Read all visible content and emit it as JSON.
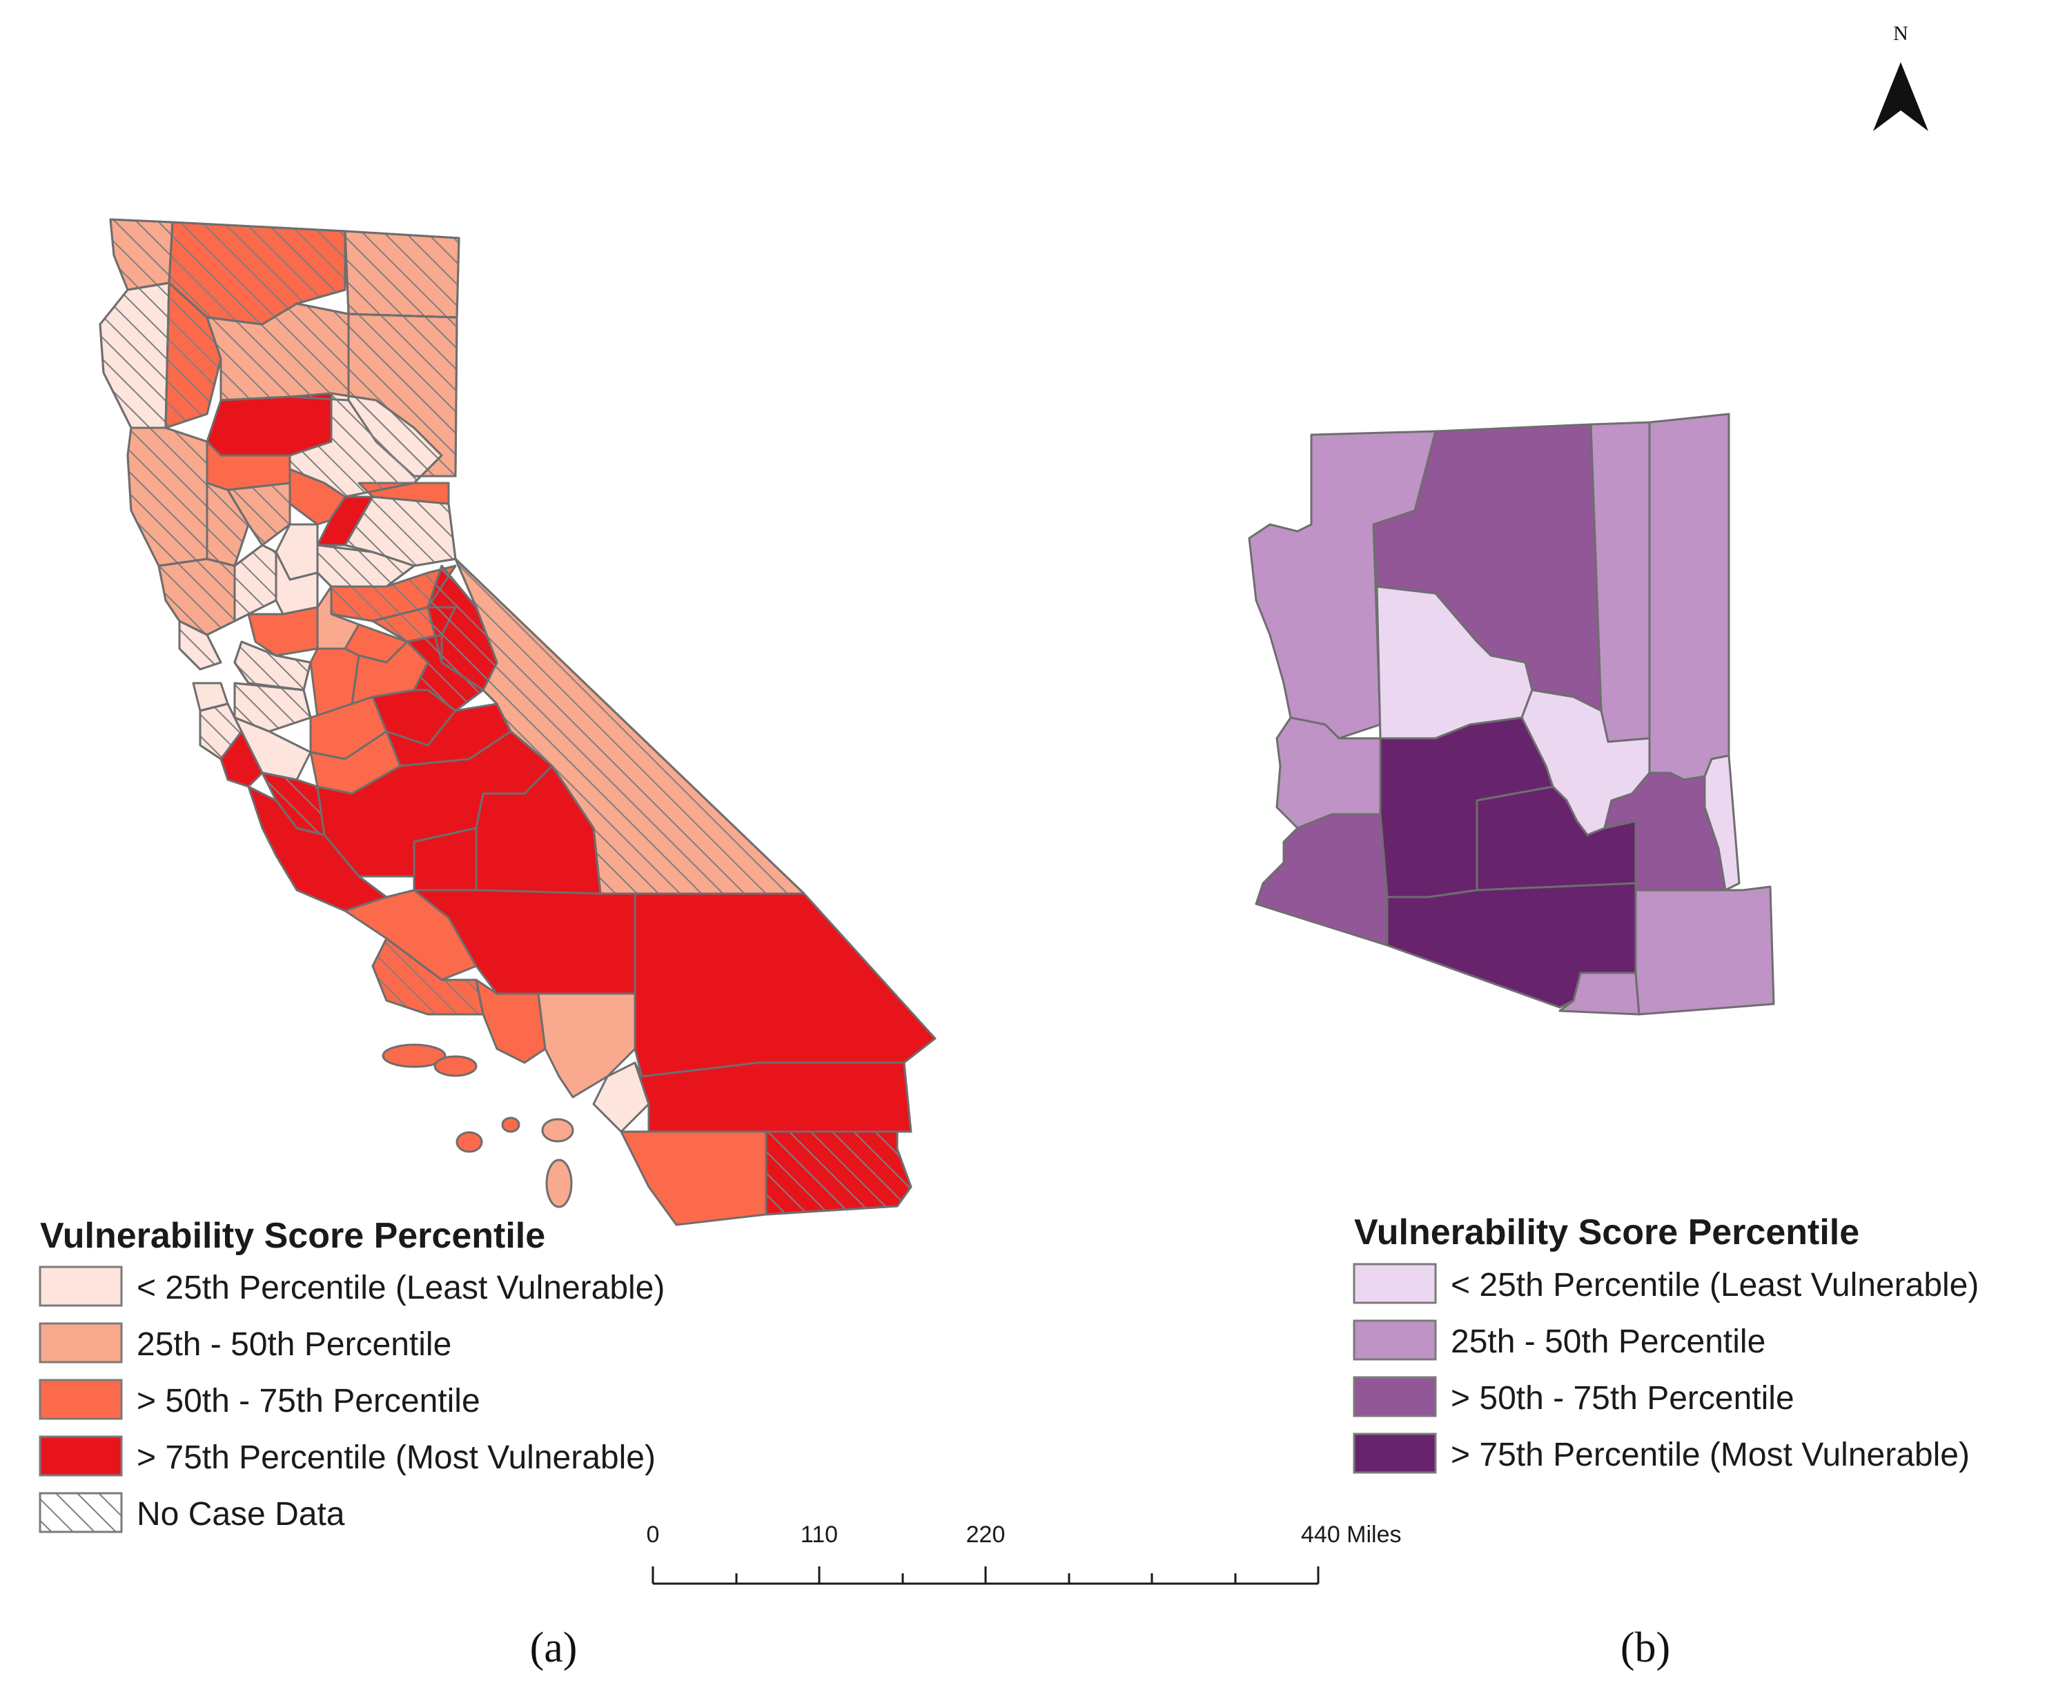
{
  "north_arrow": {
    "label": "N"
  },
  "panel_a": {
    "label": "(a)",
    "state": "California",
    "legend": {
      "title": "Vulnerability Score Percentile",
      "items": [
        {
          "label": "< 25th Percentile (Least Vulnerable)",
          "color": "#fde4dc"
        },
        {
          "label": "25th - 50th Percentile",
          "color": "#f9a98e"
        },
        {
          "label": "> 50th - 75th Percentile",
          "color": "#fb6a4a"
        },
        {
          "label": "> 75th Percentile (Most Vulnerable)",
          "color": "#e8141c"
        },
        {
          "label": "No Case Data",
          "color": "#ffffff",
          "pattern": "hatch"
        }
      ]
    }
  },
  "panel_b": {
    "label": "(b)",
    "state": "Arizona",
    "legend": {
      "title": "Vulnerability Score Percentile",
      "items": [
        {
          "label": "< 25th Percentile (Least Vulnerable)",
          "color": "#ecd7f1"
        },
        {
          "label": "25th - 50th Percentile",
          "color": "#bf93c6"
        },
        {
          "label": "> 50th - 75th Percentile",
          "color": "#925797"
        },
        {
          "label": "> 75th Percentile (Most Vulnerable)",
          "color": "#67246c"
        }
      ]
    }
  },
  "scale_bar": {
    "ticks": [
      "0",
      "110",
      "220",
      "440 Miles"
    ]
  },
  "colors": {
    "border": "#6e6e6e",
    "hatch": "#8a8a8a"
  }
}
